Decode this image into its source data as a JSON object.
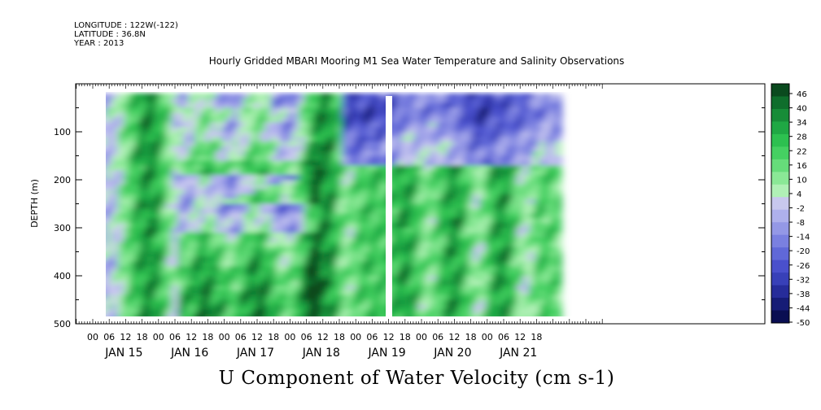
{
  "header": {
    "longitude": "LONGITUDE : 122W(-122)",
    "latitude": "LATITUDE : 36.8N",
    "year": "YEAR : 2013"
  },
  "chart_data": {
    "type": "heatmap",
    "title": "Hourly Gridded MBARI Mooring M1 Sea Water Temperature and Salinity Observations",
    "subtitle": "U Component of Water Velocity (cm s-1)",
    "ylabel": "DEPTH (m)",
    "ylim": [
      500,
      0
    ],
    "y_ticks": [
      "100",
      "200",
      "300",
      "400",
      "500"
    ],
    "x_hour_ticks": [
      "00",
      "06",
      "12",
      "18",
      "00",
      "06",
      "12",
      "18",
      "00",
      "06",
      "12",
      "18",
      "00",
      "06",
      "12",
      "18",
      "00",
      "06",
      "12",
      "18",
      "00",
      "06",
      "12",
      "18",
      "00",
      "06",
      "12",
      "18"
    ],
    "x_day_labels": [
      "JAN 15",
      "JAN 16",
      "JAN 17",
      "JAN 18",
      "JAN 19",
      "JAN 20",
      "JAN 21"
    ],
    "colorbar_ticks": [
      "46",
      "40",
      "34",
      "28",
      "22",
      "16",
      "10",
      "4",
      "-2",
      "-8",
      "-14",
      "-20",
      "-26",
      "-32",
      "-38",
      "-44",
      "-50"
    ],
    "colorbar_colors": [
      "#0a4a1e",
      "#0f6e2c",
      "#178c38",
      "#1fa844",
      "#2dc050",
      "#45d062",
      "#66dc7a",
      "#8ae896",
      "#b0f0b6",
      "#c8c8ee",
      "#aeb0ec",
      "#9498e6",
      "#7a80e0",
      "#6068d8",
      "#4a50cc",
      "#3840b8",
      "#262c9a",
      "#161c76",
      "#0a0e52"
    ]
  }
}
